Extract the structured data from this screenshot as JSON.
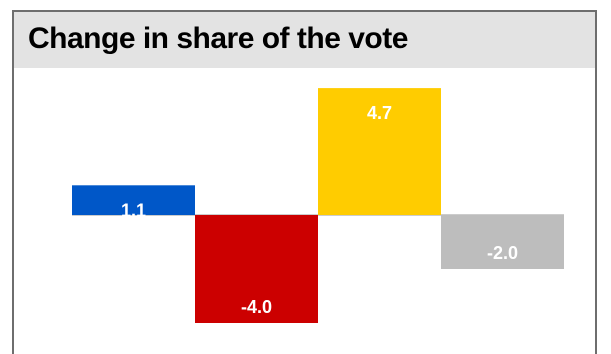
{
  "chart_data": {
    "type": "bar",
    "title": "Change in share of the vote",
    "xlabel": "",
    "ylabel": "",
    "ylim": [
      -4.6,
      5.4
    ],
    "values": [
      1.1,
      -4.0,
      4.7,
      -2.0
    ],
    "labels": [
      "1.1",
      "-4.0",
      "4.7",
      "-2.0"
    ],
    "colors": [
      "#0057c8",
      "#cc0000",
      "#ffcc00",
      "#bdbdbd"
    ],
    "grid": false,
    "legend": "none"
  }
}
